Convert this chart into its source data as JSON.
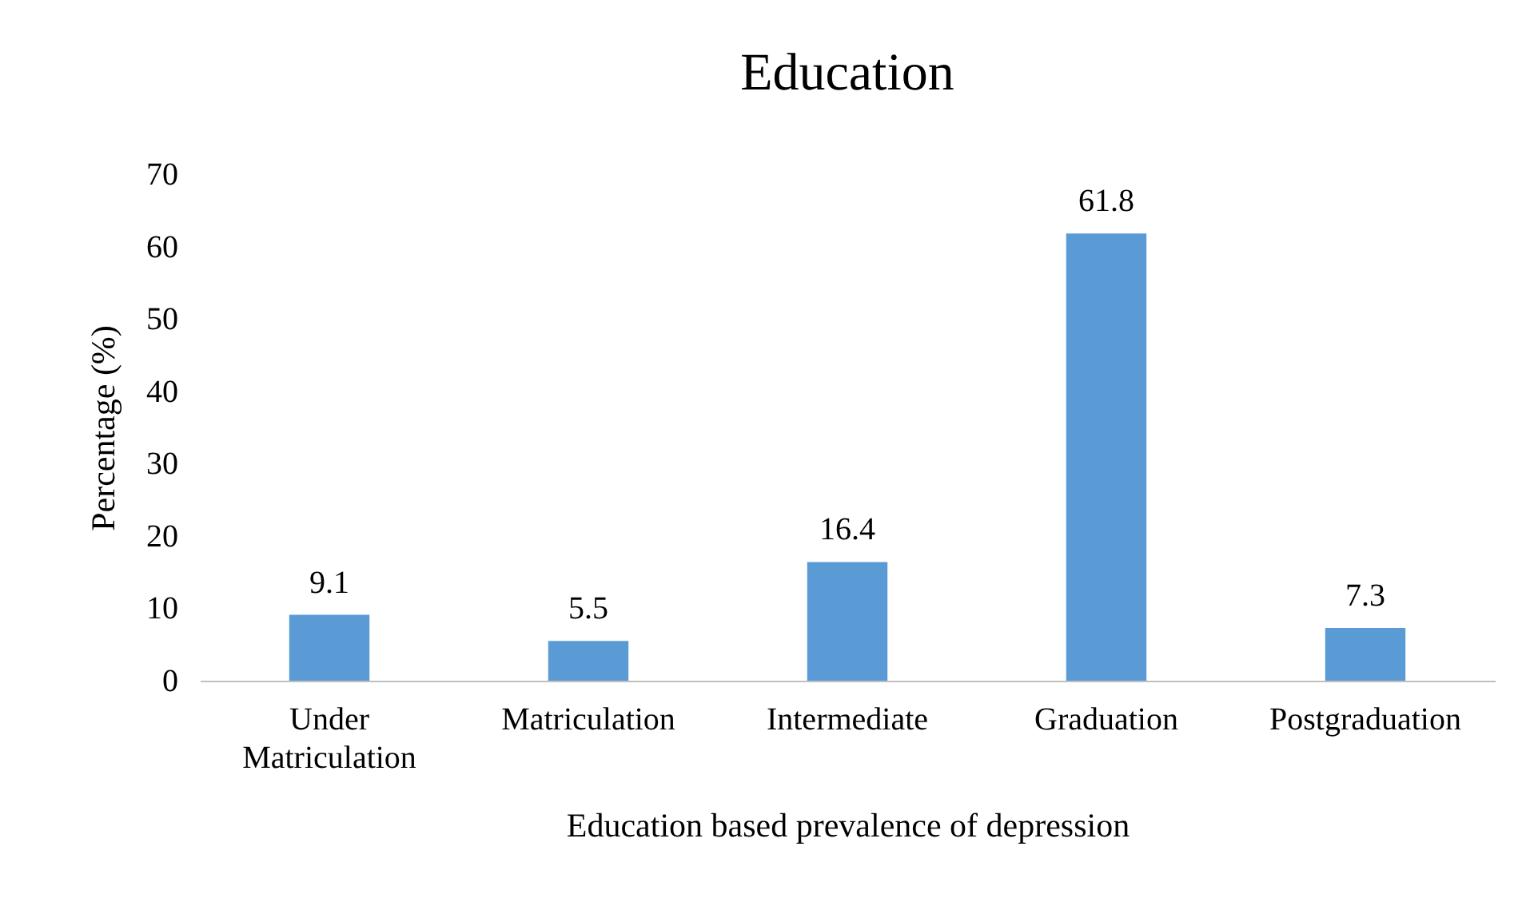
{
  "chart_data": {
    "type": "bar",
    "title": "Education",
    "xlabel": "Education based prevalence of depression",
    "ylabel": "Percentage (%)",
    "categories": [
      "Under Matriculation",
      "Matriculation",
      "Intermediate",
      "Graduation",
      "Postgraduation"
    ],
    "values": [
      9.1,
      5.5,
      16.4,
      61.8,
      7.3
    ],
    "color": "#5b9bd5",
    "ylim": [
      0,
      70
    ],
    "yticks": [
      0,
      10,
      20,
      30,
      40,
      50,
      60,
      70
    ],
    "grid": false,
    "data_labels": true
  }
}
